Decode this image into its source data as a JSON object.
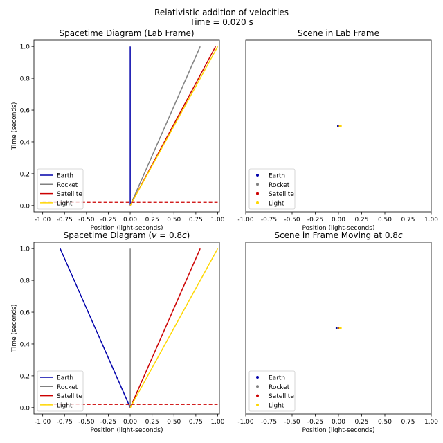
{
  "figure": {
    "suptitle": "Relativistic addition of velocities",
    "time_label": "Time = 0.020 s"
  },
  "colors": {
    "earth": "#0000aa",
    "rocket": "#808080",
    "satellite": "#cc0000",
    "light": "#ffd700",
    "now_line": "#cc0000"
  },
  "chart_data": [
    {
      "type": "line",
      "title": "Spacetime Diagram (Lab Frame)",
      "xlabel": "Position (light-seconds)",
      "ylabel": "Time (seconds)",
      "xlim": [
        -1.1,
        1.02
      ],
      "ylim": [
        -0.04,
        1.04
      ],
      "xticks": [
        "-1.00",
        "-0.75",
        "-0.50",
        "-0.25",
        "0.00",
        "0.25",
        "0.50",
        "0.75",
        "1.00"
      ],
      "xtick_values": [
        -1.0,
        -0.75,
        -0.5,
        -0.25,
        0.0,
        0.25,
        0.5,
        0.75,
        1.0
      ],
      "yticks": [
        "0.0",
        "0.2",
        "0.4",
        "0.6",
        "0.8",
        "1.0"
      ],
      "ytick_values": [
        0.0,
        0.2,
        0.4,
        0.6,
        0.8,
        1.0
      ],
      "legend": "lower-left",
      "series": [
        {
          "name": "Earth",
          "color_key": "earth",
          "x": [
            0.0,
            0.0
          ],
          "y": [
            0.0,
            1.0
          ]
        },
        {
          "name": "Rocket",
          "color_key": "rocket",
          "x": [
            0.0,
            0.8
          ],
          "y": [
            0.0,
            1.0
          ]
        },
        {
          "name": "Satellite",
          "color_key": "satellite",
          "x": [
            0.0,
            0.976
          ],
          "y": [
            0.0,
            1.0
          ]
        },
        {
          "name": "Light",
          "color_key": "light",
          "x": [
            0.0,
            1.0
          ],
          "y": [
            0.0,
            1.0
          ]
        }
      ],
      "current_time": 0.02,
      "current_time_xrange": [
        -1.0,
        1.0
      ]
    },
    {
      "type": "scatter",
      "title": "Scene in Lab Frame",
      "xlabel": "Position (light-seconds)",
      "xlim": [
        -1.0,
        1.0
      ],
      "ylim": [
        0.0,
        1.0
      ],
      "xticks": [
        "-1.00",
        "-0.75",
        "-0.50",
        "-0.25",
        "0.00",
        "0.25",
        "0.50",
        "0.75",
        "1.00"
      ],
      "xtick_values": [
        -1.0,
        -0.75,
        -0.5,
        -0.25,
        0.0,
        0.25,
        0.5,
        0.75,
        1.0
      ],
      "legend": "lower-left",
      "series": [
        {
          "name": "Earth",
          "color_key": "earth",
          "x": [
            0.0
          ],
          "y": [
            0.5
          ]
        },
        {
          "name": "Rocket",
          "color_key": "rocket",
          "x": [
            0.016
          ],
          "y": [
            0.5
          ]
        },
        {
          "name": "Satellite",
          "color_key": "satellite",
          "x": [
            0.0195
          ],
          "y": [
            0.5
          ]
        },
        {
          "name": "Light",
          "color_key": "light",
          "x": [
            0.02
          ],
          "y": [
            0.5
          ]
        }
      ]
    },
    {
      "type": "line",
      "title_parts": [
        "Spacetime Diagram (",
        "v",
        " = 0.8",
        "c",
        ")"
      ],
      "xlabel": "Position (light-seconds)",
      "ylabel": "Time (seconds)",
      "xlim": [
        -1.1,
        1.02
      ],
      "ylim": [
        -0.04,
        1.04
      ],
      "xticks": [
        "-1.00",
        "-0.75",
        "-0.50",
        "-0.25",
        "0.00",
        "0.25",
        "0.50",
        "0.75",
        "1.00"
      ],
      "xtick_values": [
        -1.0,
        -0.75,
        -0.5,
        -0.25,
        0.0,
        0.25,
        0.5,
        0.75,
        1.0
      ],
      "yticks": [
        "0.0",
        "0.2",
        "0.4",
        "0.6",
        "0.8",
        "1.0"
      ],
      "ytick_values": [
        0.0,
        0.2,
        0.4,
        0.6,
        0.8,
        1.0
      ],
      "legend": "lower-left",
      "series": [
        {
          "name": "Earth",
          "color_key": "earth",
          "x": [
            0.0,
            -0.8
          ],
          "y": [
            0.0,
            1.0
          ]
        },
        {
          "name": "Rocket",
          "color_key": "rocket",
          "x": [
            0.0,
            0.0
          ],
          "y": [
            0.0,
            1.0
          ]
        },
        {
          "name": "Satellite",
          "color_key": "satellite",
          "x": [
            0.0,
            0.8
          ],
          "y": [
            0.0,
            1.0
          ]
        },
        {
          "name": "Light",
          "color_key": "light",
          "x": [
            0.0,
            1.0
          ],
          "y": [
            0.0,
            1.0
          ]
        }
      ],
      "current_time": 0.02,
      "current_time_xrange": [
        -1.0,
        1.0
      ]
    },
    {
      "type": "scatter",
      "title_parts": [
        "Scene in Frame Moving at 0.8",
        "c",
        "",
        "",
        ""
      ],
      "xlabel": "Position (light-seconds)",
      "xlim": [
        -1.0,
        1.0
      ],
      "ylim": [
        0.0,
        1.0
      ],
      "xticks": [
        "-1.00",
        "-0.75",
        "-0.50",
        "-0.25",
        "0.00",
        "0.25",
        "0.50",
        "0.75",
        "1.00"
      ],
      "xtick_values": [
        -1.0,
        -0.75,
        -0.5,
        -0.25,
        0.0,
        0.25,
        0.5,
        0.75,
        1.0
      ],
      "legend": "lower-left",
      "series": [
        {
          "name": "Earth",
          "color_key": "earth",
          "x": [
            -0.016
          ],
          "y": [
            0.5
          ]
        },
        {
          "name": "Rocket",
          "color_key": "rocket",
          "x": [
            0.0
          ],
          "y": [
            0.5
          ]
        },
        {
          "name": "Satellite",
          "color_key": "satellite",
          "x": [
            0.016
          ],
          "y": [
            0.5
          ]
        },
        {
          "name": "Light",
          "color_key": "light",
          "x": [
            0.02
          ],
          "y": [
            0.5
          ]
        }
      ]
    }
  ]
}
